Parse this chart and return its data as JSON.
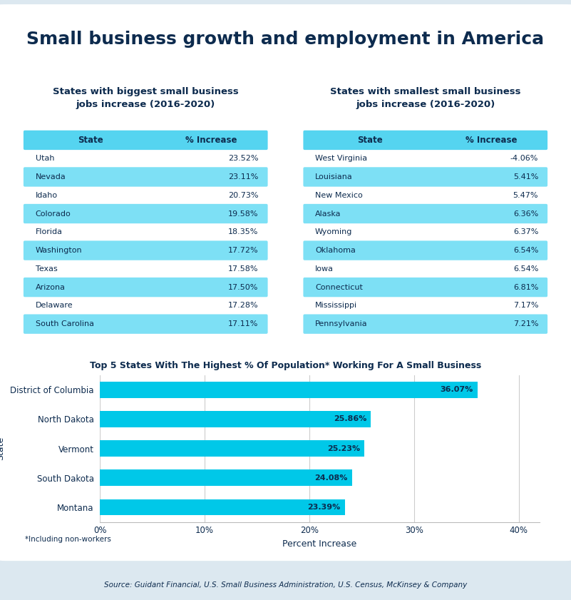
{
  "title": "Small business growth and employment in America",
  "background_color": "#dce8f0",
  "card_color": "#ffffff",
  "header_bg": "#55d4f0",
  "row_bg": "#7de0f5",
  "text_dark": "#0d2b4e",
  "biggest_title": "States with biggest small business\njobs increase (2016-2020)",
  "smallest_title": "States with smallest small business\njobs increase (2016-2020)",
  "biggest_states": [
    "Utah",
    "Nevada",
    "Idaho",
    "Colorado",
    "Florida",
    "Washington",
    "Texas",
    "Arizona",
    "Delaware",
    "South Carolina"
  ],
  "biggest_values": [
    "23.52%",
    "23.11%",
    "20.73%",
    "19.58%",
    "18.35%",
    "17.72%",
    "17.58%",
    "17.50%",
    "17.28%",
    "17.11%"
  ],
  "biggest_highlighted": [
    false,
    true,
    false,
    true,
    false,
    true,
    false,
    true,
    false,
    true
  ],
  "smallest_states": [
    "West Virginia",
    "Louisiana",
    "New Mexico",
    "Alaska",
    "Wyoming",
    "Oklahoma",
    "Iowa",
    "Connecticut",
    "Mississippi",
    "Pennsylvania"
  ],
  "smallest_values": [
    "-4.06%",
    "5.41%",
    "5.47%",
    "6.36%",
    "6.37%",
    "6.54%",
    "6.54%",
    "6.81%",
    "7.17%",
    "7.21%"
  ],
  "smallest_highlighted": [
    false,
    true,
    false,
    true,
    false,
    true,
    false,
    true,
    false,
    true
  ],
  "bar_title": "Top 5 States With The Highest % Of Population* Working For A Small Business",
  "bar_states": [
    "District of Columbia",
    "North Dakota",
    "Vermont",
    "South Dakota",
    "Montana"
  ],
  "bar_values": [
    36.07,
    25.86,
    25.23,
    24.08,
    23.39
  ],
  "bar_labels": [
    "36.07%",
    "25.86%",
    "25.23%",
    "24.08%",
    "23.39%"
  ],
  "bar_color": "#00c8e8",
  "bar_xlabel": "Percent Increase",
  "bar_ylabel": "State",
  "bar_note": "*Including non-workers",
  "source": "Source: Guidant Financial, U.S. Small Business Administration, U.S. Census, McKinsey & Company"
}
